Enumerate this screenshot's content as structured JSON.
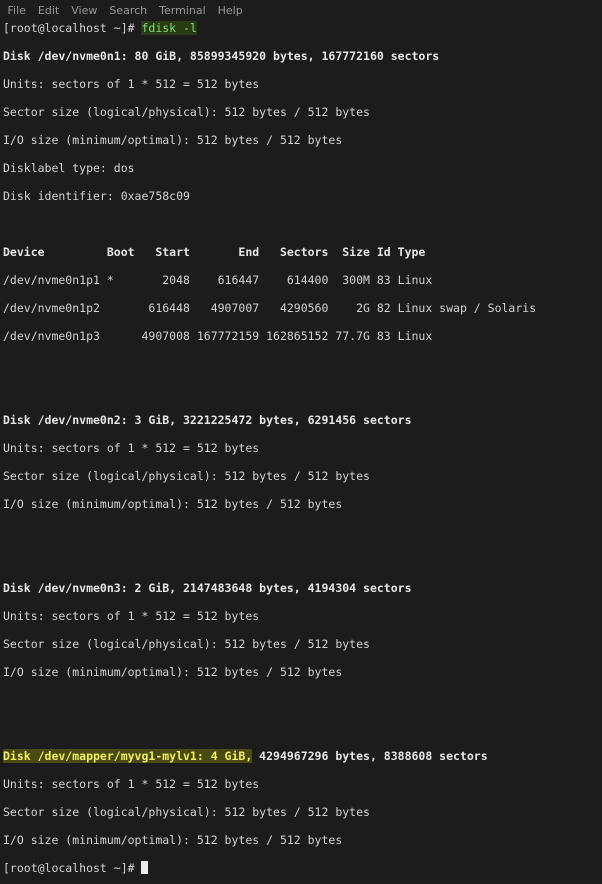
{
  "menu": [
    "File",
    "Edit",
    "View",
    "Search",
    "Terminal",
    "Help"
  ],
  "prompt": "[root@localhost ~]# ",
  "command": "fdisk -l",
  "disk1": {
    "header": "Disk /dev/nvme0n1: 80 GiB, 85899345920 bytes, 167772160 sectors",
    "units": "Units: sectors of 1 * 512 = 512 bytes",
    "sector": "Sector size (logical/physical): 512 bytes / 512 bytes",
    "io": "I/O size (minimum/optimal): 512 bytes / 512 bytes",
    "label": "Disklabel type: dos",
    "identifier": "Disk identifier: 0xae758c09",
    "table_header": "Device         Boot   Start       End   Sectors  Size Id Type",
    "rows": [
      "/dev/nvme0n1p1 *       2048    616447    614400  300M 83 Linux",
      "/dev/nvme0n1p2       616448   4907007   4290560    2G 82 Linux swap / Solaris",
      "/dev/nvme0n1p3      4907008 167772159 162865152 77.7G 83 Linux"
    ]
  },
  "disk2": {
    "header": "Disk /dev/nvme0n2: 3 GiB, 3221225472 bytes, 6291456 sectors",
    "units": "Units: sectors of 1 * 512 = 512 bytes",
    "sector": "Sector size (logical/physical): 512 bytes / 512 bytes",
    "io": "I/O size (minimum/optimal): 512 bytes / 512 bytes"
  },
  "disk3": {
    "header": "Disk /dev/nvme0n3: 2 GiB, 2147483648 bytes, 4194304 sectors",
    "units": "Units: sectors of 1 * 512 = 512 bytes",
    "sector": "Sector size (logical/physical): 512 bytes / 512 bytes",
    "io": "I/O size (minimum/optimal): 512 bytes / 512 bytes"
  },
  "disk4": {
    "header_highlighted": "Disk /dev/mapper/myvg1-mylv1: 4 GiB,",
    "header_rest": " 4294967296 bytes, 8388608 sectors",
    "units": "Units: sectors of 1 * 512 = 512 bytes",
    "sector": "Sector size (logical/physical): 512 bytes / 512 bytes",
    "io": "I/O size (minimum/optimal): 512 bytes / 512 bytes"
  },
  "colors": {
    "highlight": "#4a4a10",
    "command": "#7be07b",
    "background": "#1c1c1c"
  }
}
